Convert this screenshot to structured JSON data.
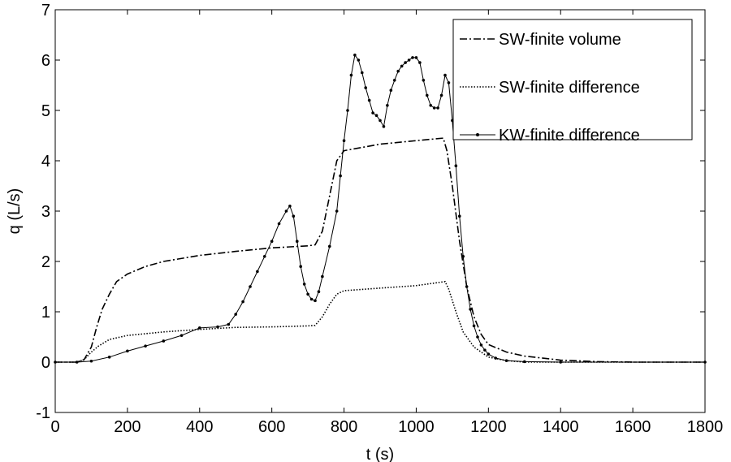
{
  "chart_data": {
    "type": "line",
    "xlabel": "t (s)",
    "ylabel": "q (L/s)",
    "xlim": [
      0,
      1800
    ],
    "ylim": [
      -1,
      7
    ],
    "x_ticks": [
      0,
      200,
      400,
      600,
      800,
      1000,
      1200,
      1400,
      1600,
      1800
    ],
    "y_ticks": [
      -1,
      0,
      1,
      2,
      3,
      4,
      5,
      6,
      7
    ],
    "grid": false,
    "legend_position": "top-right",
    "series": [
      {
        "name": "SW-finite volume",
        "style": "dash-dot",
        "points": [
          [
            0,
            0
          ],
          [
            60,
            0
          ],
          [
            80,
            0.05
          ],
          [
            100,
            0.3
          ],
          [
            115,
            0.7
          ],
          [
            130,
            1.05
          ],
          [
            150,
            1.35
          ],
          [
            170,
            1.6
          ],
          [
            200,
            1.75
          ],
          [
            250,
            1.9
          ],
          [
            300,
            2.0
          ],
          [
            400,
            2.12
          ],
          [
            500,
            2.2
          ],
          [
            600,
            2.27
          ],
          [
            700,
            2.31
          ],
          [
            720,
            2.33
          ],
          [
            740,
            2.6
          ],
          [
            760,
            3.3
          ],
          [
            780,
            4.0
          ],
          [
            800,
            4.2
          ],
          [
            900,
            4.33
          ],
          [
            1000,
            4.4
          ],
          [
            1075,
            4.45
          ],
          [
            1085,
            4.2
          ],
          [
            1100,
            3.5
          ],
          [
            1120,
            2.4
          ],
          [
            1140,
            1.5
          ],
          [
            1160,
            0.9
          ],
          [
            1180,
            0.55
          ],
          [
            1200,
            0.35
          ],
          [
            1250,
            0.2
          ],
          [
            1300,
            0.12
          ],
          [
            1400,
            0.04
          ],
          [
            1500,
            0.01
          ],
          [
            1600,
            0
          ],
          [
            1800,
            0
          ]
        ]
      },
      {
        "name": "SW-finite difference",
        "style": "dotted",
        "points": [
          [
            0,
            0
          ],
          [
            60,
            0
          ],
          [
            80,
            0.05
          ],
          [
            100,
            0.2
          ],
          [
            120,
            0.32
          ],
          [
            150,
            0.45
          ],
          [
            200,
            0.53
          ],
          [
            300,
            0.6
          ],
          [
            400,
            0.65
          ],
          [
            500,
            0.69
          ],
          [
            600,
            0.7
          ],
          [
            700,
            0.72
          ],
          [
            720,
            0.73
          ],
          [
            740,
            0.9
          ],
          [
            760,
            1.15
          ],
          [
            780,
            1.35
          ],
          [
            800,
            1.42
          ],
          [
            900,
            1.47
          ],
          [
            1000,
            1.52
          ],
          [
            1080,
            1.6
          ],
          [
            1090,
            1.45
          ],
          [
            1110,
            1.0
          ],
          [
            1130,
            0.6
          ],
          [
            1160,
            0.3
          ],
          [
            1200,
            0.1
          ],
          [
            1250,
            0.03
          ],
          [
            1300,
            0
          ],
          [
            1800,
            0
          ]
        ]
      },
      {
        "name": "KW-finite difference",
        "style": "solid-dot",
        "points": [
          [
            0,
            0
          ],
          [
            60,
            0
          ],
          [
            100,
            0.02
          ],
          [
            150,
            0.1
          ],
          [
            200,
            0.22
          ],
          [
            250,
            0.32
          ],
          [
            300,
            0.42
          ],
          [
            350,
            0.53
          ],
          [
            400,
            0.68
          ],
          [
            450,
            0.7
          ],
          [
            480,
            0.75
          ],
          [
            500,
            0.95
          ],
          [
            520,
            1.2
          ],
          [
            540,
            1.5
          ],
          [
            560,
            1.8
          ],
          [
            580,
            2.1
          ],
          [
            600,
            2.4
          ],
          [
            620,
            2.75
          ],
          [
            640,
            3.0
          ],
          [
            650,
            3.1
          ],
          [
            660,
            2.9
          ],
          [
            670,
            2.4
          ],
          [
            680,
            1.9
          ],
          [
            690,
            1.55
          ],
          [
            700,
            1.35
          ],
          [
            710,
            1.25
          ],
          [
            720,
            1.22
          ],
          [
            730,
            1.4
          ],
          [
            740,
            1.7
          ],
          [
            760,
            2.3
          ],
          [
            780,
            3.0
          ],
          [
            790,
            3.7
          ],
          [
            800,
            4.4
          ],
          [
            810,
            5.0
          ],
          [
            820,
            5.7
          ],
          [
            830,
            6.1
          ],
          [
            840,
            6.0
          ],
          [
            850,
            5.75
          ],
          [
            860,
            5.45
          ],
          [
            870,
            5.2
          ],
          [
            880,
            4.95
          ],
          [
            890,
            4.9
          ],
          [
            900,
            4.8
          ],
          [
            910,
            4.68
          ],
          [
            920,
            5.1
          ],
          [
            930,
            5.4
          ],
          [
            940,
            5.6
          ],
          [
            950,
            5.78
          ],
          [
            960,
            5.88
          ],
          [
            970,
            5.95
          ],
          [
            980,
            6.0
          ],
          [
            990,
            6.05
          ],
          [
            1000,
            6.05
          ],
          [
            1010,
            5.95
          ],
          [
            1020,
            5.6
          ],
          [
            1030,
            5.3
          ],
          [
            1040,
            5.1
          ],
          [
            1050,
            5.05
          ],
          [
            1060,
            5.05
          ],
          [
            1070,
            5.3
          ],
          [
            1080,
            5.7
          ],
          [
            1090,
            5.55
          ],
          [
            1100,
            4.8
          ],
          [
            1110,
            3.9
          ],
          [
            1120,
            2.9
          ],
          [
            1130,
            2.1
          ],
          [
            1140,
            1.5
          ],
          [
            1150,
            1.05
          ],
          [
            1160,
            0.72
          ],
          [
            1170,
            0.5
          ],
          [
            1180,
            0.34
          ],
          [
            1190,
            0.24
          ],
          [
            1200,
            0.16
          ],
          [
            1220,
            0.08
          ],
          [
            1250,
            0.03
          ],
          [
            1300,
            0.01
          ],
          [
            1400,
            0
          ],
          [
            1800,
            0
          ]
        ]
      }
    ]
  }
}
